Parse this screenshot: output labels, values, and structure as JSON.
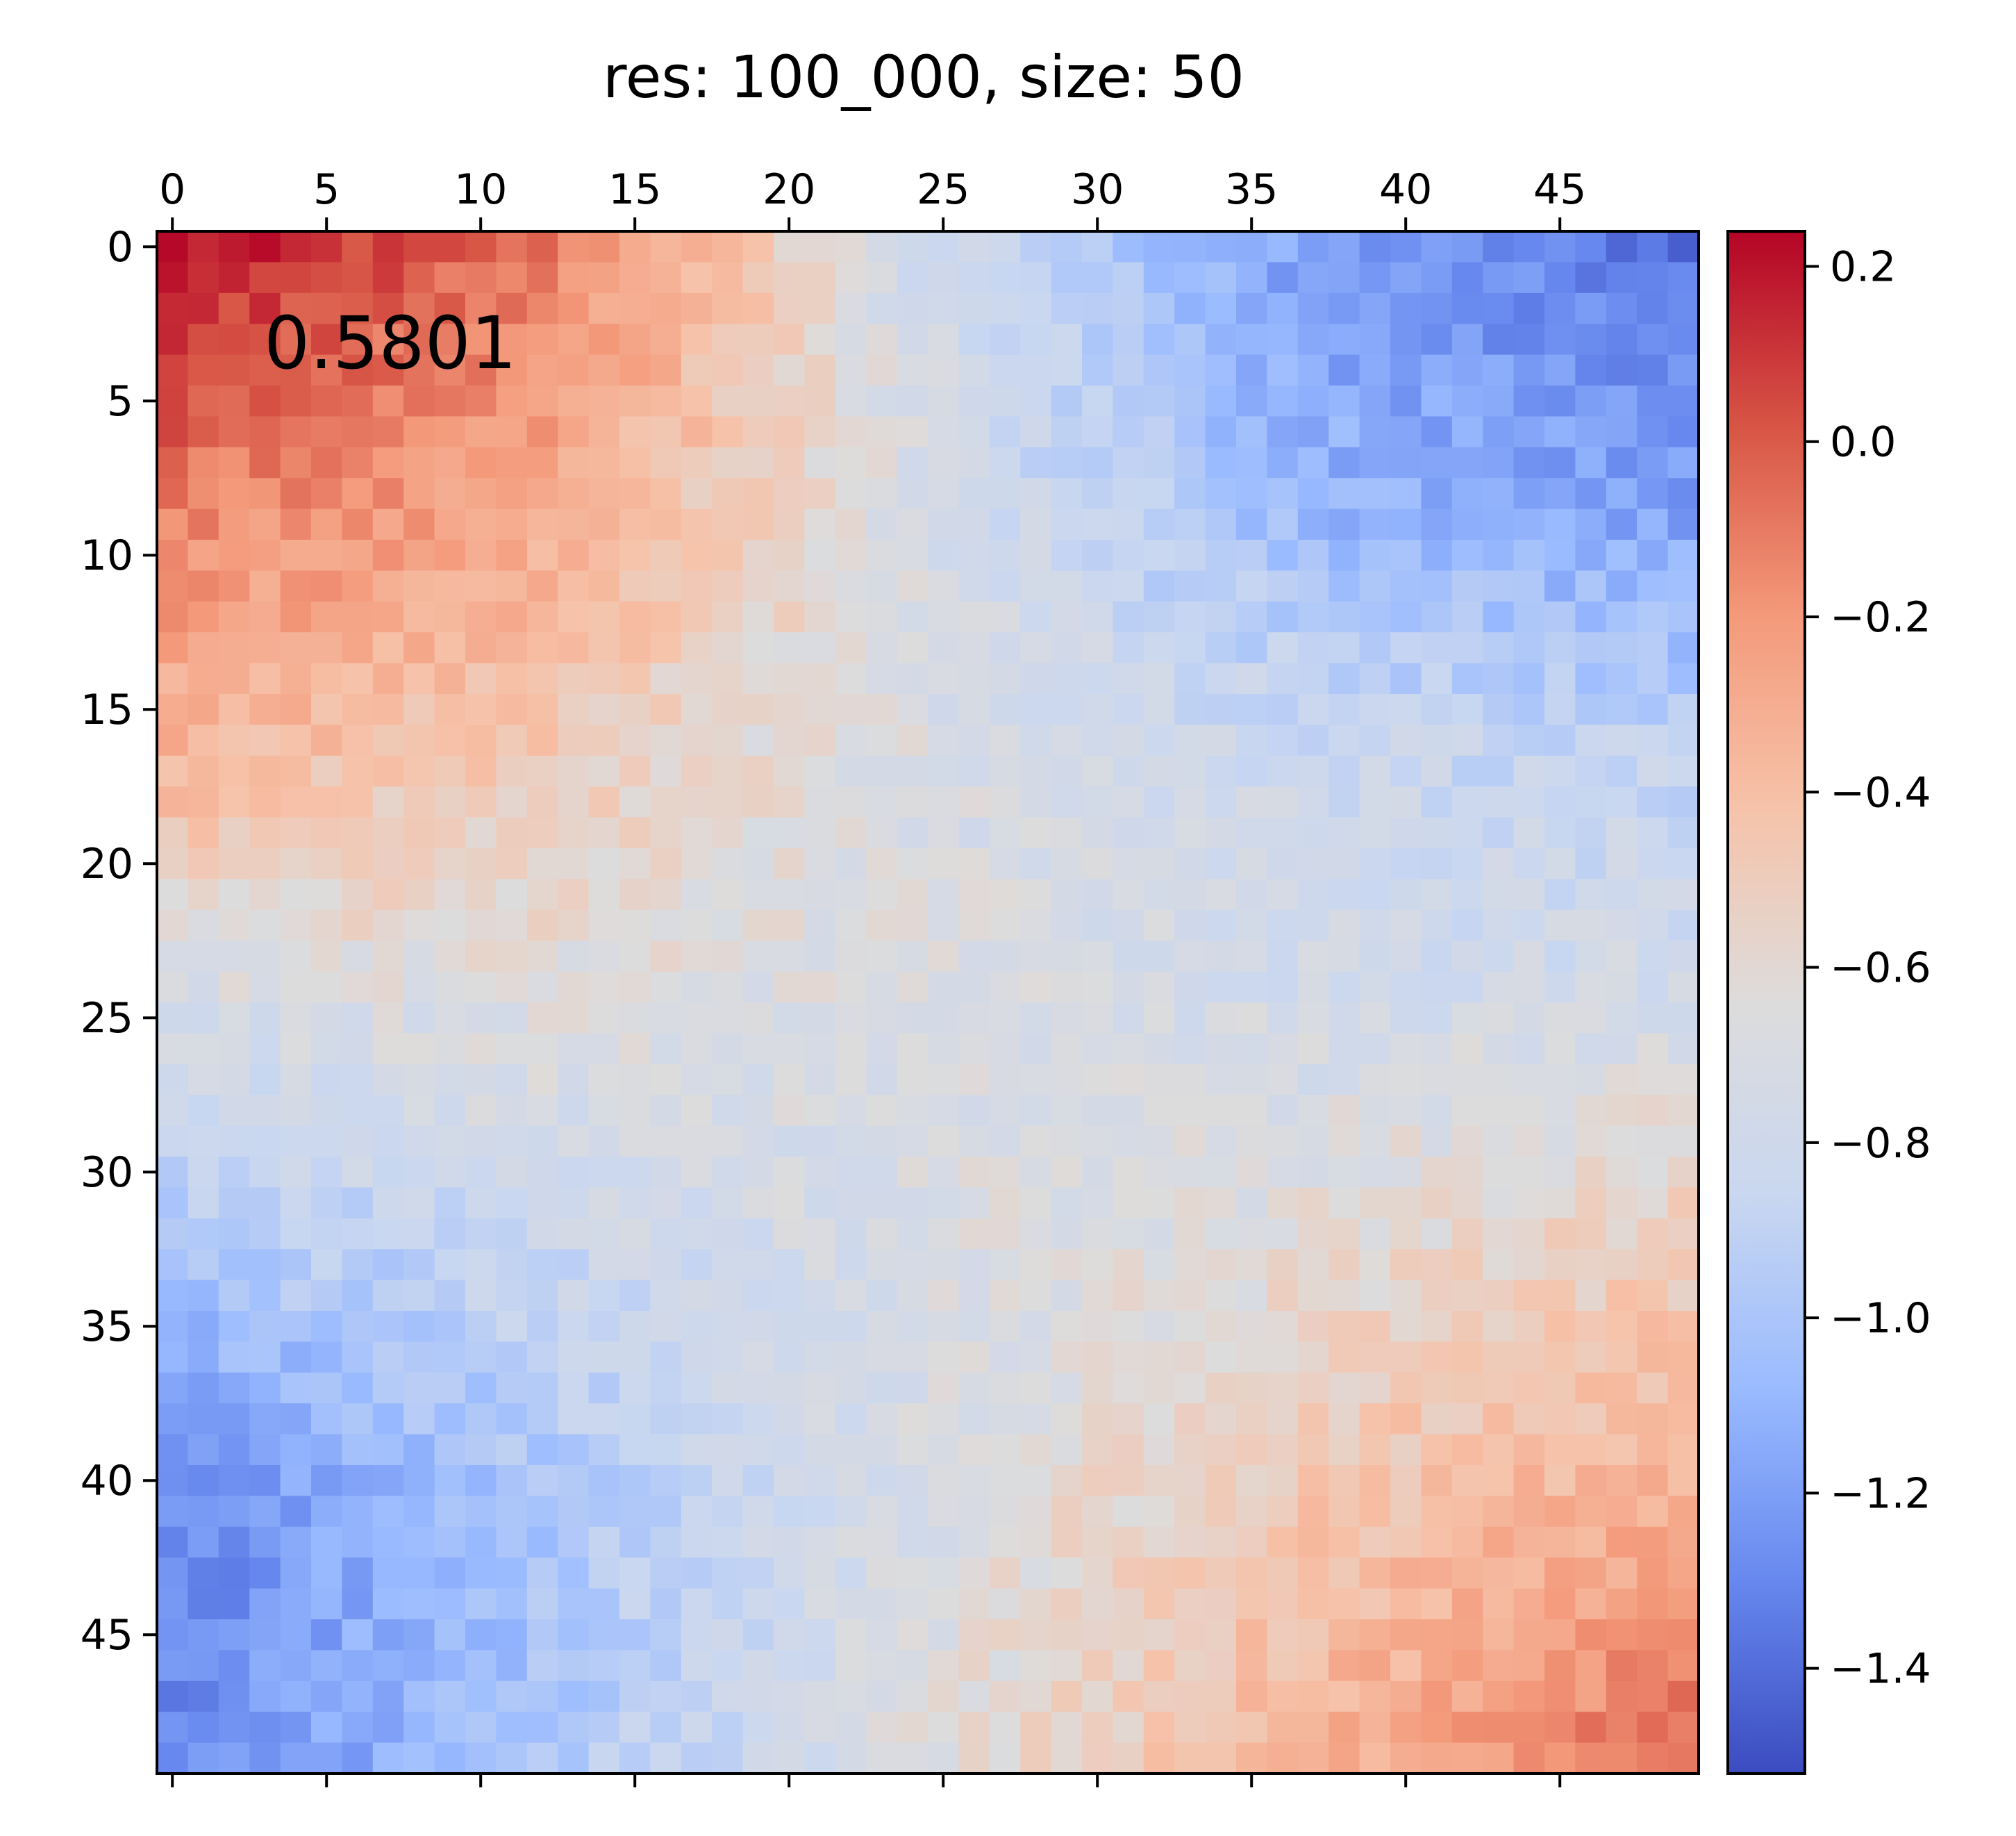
{
  "chart_data": {
    "type": "heatmap",
    "title": "res: 100_000, size: 50",
    "xlabel": "",
    "ylabel": "",
    "rows": 50,
    "cols": 50,
    "x_ticks": [
      0,
      5,
      10,
      15,
      20,
      25,
      30,
      35,
      40,
      45
    ],
    "y_ticks": [
      0,
      5,
      10,
      15,
      20,
      25,
      30,
      35,
      40,
      45
    ],
    "x_axis_position": "top",
    "colormap": "coolwarm",
    "colormap_colors": [
      "#3b4cc0",
      "#6788ee",
      "#9abbff",
      "#c9d7f0",
      "#dddcdc",
      "#f6c3aa",
      "#f49a7b",
      "#d75445",
      "#b40426"
    ],
    "value_range": [
      -1.52,
      0.24
    ],
    "colorbar": {
      "ticks": [
        0.2,
        0.0,
        -0.2,
        -0.4,
        -0.6,
        -0.8,
        -1.0,
        -1.2,
        -1.4
      ],
      "tick_labels": [
        "0.2",
        "0.0",
        "−0.2",
        "−0.4",
        "−0.6",
        "−0.8",
        "−1.0",
        "−1.2",
        "−1.4"
      ],
      "placement": "right"
    },
    "annotation": {
      "text": "0.5801",
      "placement": "top-left"
    },
    "grid": false,
    "anchors": [
      [
        0.2,
        -0.08,
        -0.8,
        -1.2,
        -1.38
      ],
      [
        -0.1,
        -0.28,
        -0.72,
        -1.1,
        -1.2
      ],
      [
        -0.35,
        -0.48,
        -0.7,
        -0.82,
        -0.9
      ],
      [
        -0.72,
        -0.66,
        -0.68,
        -0.76,
        -0.76
      ],
      [
        -1.0,
        -0.84,
        -0.7,
        -0.62,
        -0.5
      ],
      [
        -1.3,
        -1.0,
        -0.7,
        -0.45,
        -0.3
      ],
      [
        -1.3,
        -1.0,
        -0.66,
        -0.35,
        -0.05
      ]
    ],
    "noise_amplitude": 0.09
  }
}
